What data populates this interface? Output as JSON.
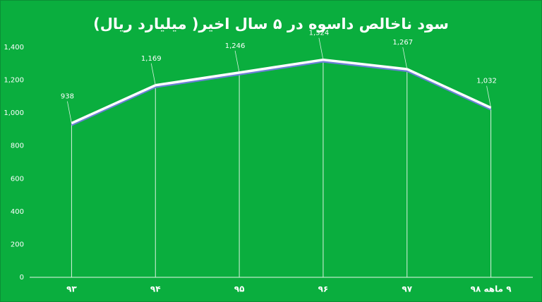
{
  "chart_data": {
    "type": "line",
    "title": "سود ناخالص داسوه در ۵ سال اخیر( میلیارد ریال)",
    "categories": [
      "۹۳",
      "۹۴",
      "۹۵",
      "۹۶",
      "۹۷",
      "۹ ماهه ۹۸"
    ],
    "values": [
      938,
      1169,
      1246,
      1324,
      1267,
      1032
    ],
    "value_labels": [
      "938",
      "1,169",
      "1,246",
      "1,324",
      "1,267",
      "1,032"
    ],
    "color": "#ffffff",
    "ylim": [
      0,
      1400
    ],
    "yticks": [
      0,
      200,
      400,
      600,
      800,
      {
        "value": 1000,
        "label": "1,000"
      },
      {
        "value": 1200,
        "label": "1,200"
      },
      {
        "value": 1400,
        "label": "1,400"
      }
    ],
    "grid": false
  }
}
